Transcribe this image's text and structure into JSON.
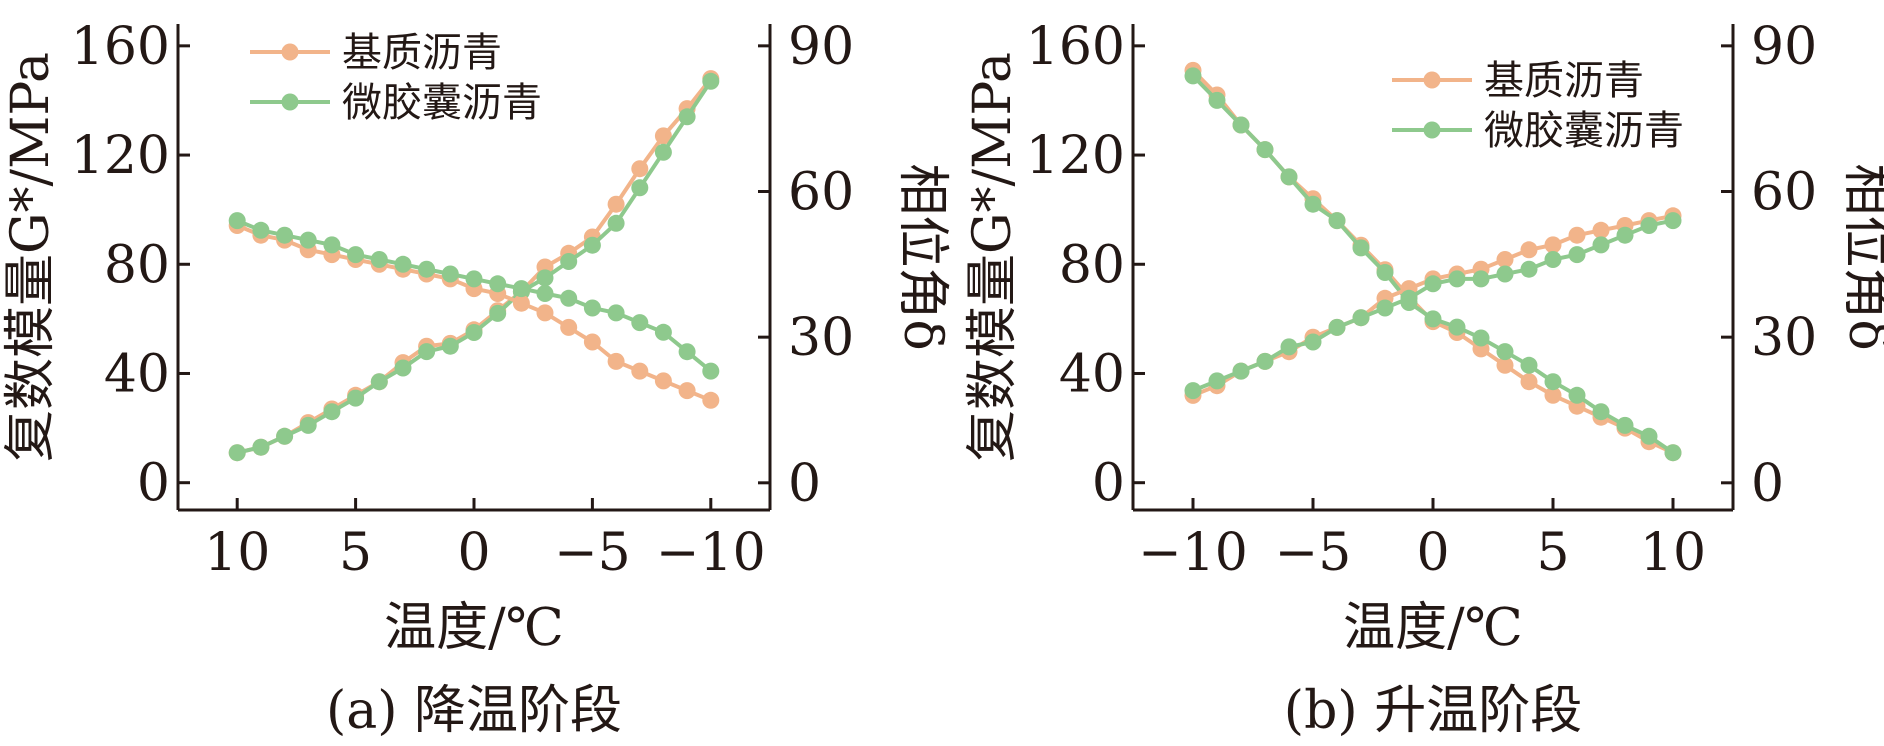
{
  "chart_data": [
    {
      "id": "a",
      "type": "line",
      "caption": "(a) 降温阶段",
      "xlabel": "温度/℃",
      "ylabel": "复数模量G*/MPa",
      "y2label": "相位角δ",
      "x_ticks": [
        "10",
        "5",
        "0",
        "−5",
        "−10"
      ],
      "y_ticks": [
        "0",
        "40",
        "80",
        "120",
        "160"
      ],
      "y2_ticks": [
        "0",
        "30",
        "60",
        "90"
      ],
      "x_reversed": true,
      "xlim": [
        12.5,
        -12.5
      ],
      "ylim": [
        -10,
        168
      ],
      "y2lim": [
        -5.6,
        94.5
      ],
      "legend_position": "top-left",
      "legend": [
        "基质沥青",
        "微胶囊沥青"
      ],
      "x": [
        10,
        9,
        8,
        7,
        6,
        5,
        4,
        3,
        2,
        1,
        0,
        -1,
        -2,
        -3,
        -4,
        -5,
        -6,
        -7,
        -8,
        -9,
        -10
      ],
      "series": [
        {
          "name": "基质沥青",
          "axis": "modulus",
          "color": "#f2b48a",
          "values": [
            11,
            13,
            17,
            22,
            27,
            32,
            37,
            44,
            50,
            51,
            56,
            63,
            70,
            79,
            84,
            90,
            102,
            115,
            127,
            137,
            148
          ]
        },
        {
          "name": "微胶囊沥青",
          "axis": "modulus",
          "color": "#8ec98d",
          "values": [
            11,
            13,
            17,
            21,
            26,
            31,
            37,
            42,
            48,
            50,
            55,
            62,
            70,
            75,
            81,
            87,
            95,
            108,
            121,
            134,
            147
          ]
        },
        {
          "name": "基质沥青",
          "axis": "phase",
          "color": "#f2b48a",
          "values": [
            53,
            51,
            50,
            48,
            47,
            46,
            45,
            44,
            43,
            42,
            40,
            39,
            37,
            35,
            32,
            29,
            25,
            23,
            21,
            19,
            17
          ]
        },
        {
          "name": "微胶囊沥青",
          "axis": "phase",
          "color": "#8ec98d",
          "values": [
            54,
            52,
            51,
            50,
            49,
            47,
            46,
            45,
            44,
            43,
            42,
            41,
            40,
            39,
            38,
            36,
            35,
            33,
            31,
            27,
            23
          ]
        }
      ]
    },
    {
      "id": "b",
      "type": "line",
      "caption": "(b) 升温阶段",
      "xlabel": "温度/℃",
      "ylabel": "复数模量G*/MPa",
      "y2label": "相位角δ",
      "x_ticks": [
        "−10",
        "−5",
        "0",
        "5",
        "10"
      ],
      "y_ticks": [
        "0",
        "40",
        "80",
        "120",
        "160"
      ],
      "y2_ticks": [
        "0",
        "30",
        "60",
        "90"
      ],
      "x_reversed": false,
      "xlim": [
        -12.5,
        12.5
      ],
      "ylim": [
        -10,
        168
      ],
      "y2lim": [
        -5.6,
        94.5
      ],
      "legend_position": "top-right",
      "legend": [
        "基质沥青",
        "微胶囊沥青"
      ],
      "x": [
        -10,
        -9,
        -8,
        -7,
        -6,
        -5,
        -4,
        -3,
        -2,
        -1,
        0,
        1,
        2,
        3,
        4,
        5,
        6,
        7,
        8,
        9,
        10
      ],
      "series": [
        {
          "name": "基质沥青",
          "axis": "modulus",
          "color": "#f2b48a",
          "values": [
            151,
            142,
            131,
            122,
            112,
            104,
            96,
            87,
            78,
            68,
            59,
            55,
            49,
            43,
            37,
            32,
            28,
            24,
            20,
            15,
            11
          ]
        },
        {
          "name": "微胶囊沥青",
          "axis": "modulus",
          "color": "#8ec98d",
          "values": [
            149,
            140,
            131,
            122,
            112,
            102,
            96,
            86,
            77,
            66,
            60,
            57,
            53,
            48,
            43,
            37,
            32,
            26,
            21,
            17,
            11
          ]
        },
        {
          "name": "基质沥青",
          "axis": "phase",
          "color": "#f2b48a",
          "values": [
            18,
            20,
            23,
            25,
            27,
            30,
            32,
            34,
            38,
            40,
            42,
            43,
            44,
            46,
            48,
            49,
            51,
            52,
            53,
            54,
            55
          ]
        },
        {
          "name": "微胶囊沥青",
          "axis": "phase",
          "color": "#8ec98d",
          "values": [
            19,
            21,
            23,
            25,
            28,
            29,
            32,
            34,
            36,
            38,
            41,
            42,
            42,
            43,
            44,
            46,
            47,
            49,
            51,
            53,
            54
          ]
        }
      ]
    }
  ]
}
